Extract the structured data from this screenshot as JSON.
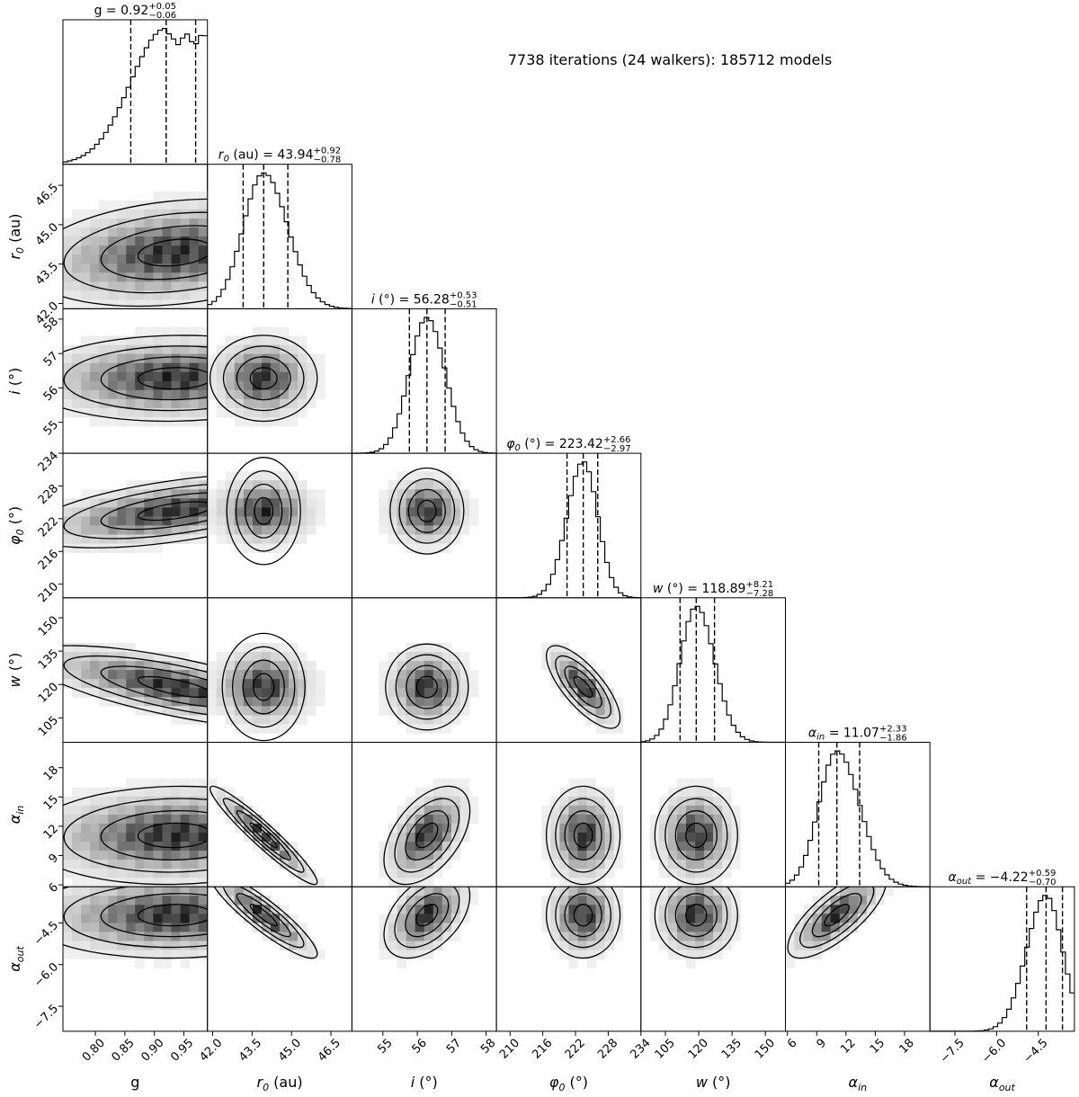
{
  "header": {
    "note": "7738 iterations (24 walkers): 185712 models"
  },
  "chart_data": {
    "type": "corner",
    "parameters": [
      {
        "key": "g",
        "label_main": "g",
        "label_sub": "",
        "label_suffix": "",
        "range": [
          0.745,
          0.99
        ],
        "ticks": [
          0.8,
          0.85,
          0.9,
          0.95
        ],
        "tick_labels": [
          "0.80",
          "0.85",
          "0.90",
          "0.95"
        ],
        "value": 0.92,
        "err_plus": 0.05,
        "err_minus": 0.06,
        "title_main": "g",
        "title_sub": "",
        "title_suffix": "",
        "title_value": "= 0.92",
        "title_plus": "+0.05",
        "title_minus": "−0.06"
      },
      {
        "key": "r0",
        "label_main": "r",
        "label_sub": "0",
        "label_suffix": " (au)",
        "range": [
          41.8,
          47.3
        ],
        "ticks": [
          42.0,
          43.5,
          45.0,
          46.5
        ],
        "tick_labels": [
          "42.0",
          "43.5",
          "45.0",
          "46.5"
        ],
        "value": 43.94,
        "err_plus": 0.92,
        "err_minus": 0.78,
        "title_main": "r",
        "title_sub": "0",
        "title_suffix": " (au)",
        "title_value": "= 43.94",
        "title_plus": "+0.92",
        "title_minus": "−0.78"
      },
      {
        "key": "i",
        "label_main": "i",
        "label_sub": "",
        "label_suffix": " (°)",
        "range": [
          54.1,
          58.3
        ],
        "ticks": [
          55,
          56,
          57,
          58
        ],
        "tick_labels": [
          "55",
          "56",
          "57",
          "58"
        ],
        "value": 56.28,
        "err_plus": 0.53,
        "err_minus": 0.51,
        "title_main": "i",
        "title_sub": "",
        "title_suffix": " (°)",
        "title_value": "= 56.28",
        "title_plus": "+0.53",
        "title_minus": "−0.51"
      },
      {
        "key": "phi0",
        "label_main": "φ",
        "label_sub": "0",
        "label_suffix": " (°)",
        "range": [
          207.5,
          234.0
        ],
        "ticks": [
          210,
          216,
          222,
          228,
          234
        ],
        "tick_labels": [
          "210",
          "216",
          "222",
          "228",
          "234"
        ],
        "value": 223.42,
        "err_plus": 2.66,
        "err_minus": 2.97,
        "title_main": "φ",
        "title_sub": "0",
        "title_suffix": " (°)",
        "title_value": "= 223.42",
        "title_plus": "+2.66",
        "title_minus": "−2.97"
      },
      {
        "key": "w",
        "label_main": "w",
        "label_sub": "",
        "label_suffix": " (°)",
        "range": [
          94.0,
          159.0
        ],
        "ticks": [
          105,
          120,
          135,
          150
        ],
        "tick_labels": [
          "105",
          "120",
          "135",
          "150"
        ],
        "value": 118.89,
        "err_plus": 8.21,
        "err_minus": 7.28,
        "title_main": "w",
        "title_sub": "",
        "title_suffix": " (°)",
        "title_value": "= 118.89",
        "title_plus": "+8.21",
        "title_minus": "−7.28"
      },
      {
        "key": "alpha_in",
        "label_main": "α",
        "label_sub": "in",
        "label_suffix": "",
        "range": [
          5.8,
          20.6
        ],
        "ticks": [
          6,
          9,
          12,
          15,
          18
        ],
        "tick_labels": [
          "6",
          "9",
          "12",
          "15",
          "18"
        ],
        "value": 11.07,
        "err_plus": 2.33,
        "err_minus": 1.86,
        "title_main": "α",
        "title_sub": "in",
        "title_suffix": "",
        "title_value": "= 11.07",
        "title_plus": "+2.33",
        "title_minus": "−1.86"
      },
      {
        "key": "alpha_out",
        "label_main": "α",
        "label_sub": "out",
        "label_suffix": "",
        "range": [
          -8.4,
          -3.2
        ],
        "ticks": [
          -7.5,
          -6.0,
          -4.5
        ],
        "tick_labels": [
          "−7.5",
          "−6.0",
          "−4.5"
        ],
        "value": -4.22,
        "err_plus": 0.59,
        "err_minus": 0.7,
        "title_main": "α",
        "title_sub": "out",
        "title_suffix": "",
        "title_value": "= −4.22",
        "title_plus": "+0.59",
        "title_minus": "−0.70"
      }
    ],
    "pair_correlations": [
      [
        1,
        0.25,
        0.05,
        0.55,
        -0.7,
        0.05,
        0.05
      ],
      [
        0.25,
        1,
        0.0,
        0.0,
        0.0,
        -0.95,
        -0.9
      ],
      [
        0.05,
        0.0,
        1,
        0.0,
        0.0,
        0.5,
        0.45
      ],
      [
        0.55,
        0.0,
        0.0,
        1,
        -0.75,
        0.0,
        0.0
      ],
      [
        -0.7,
        0.0,
        0.0,
        -0.75,
        1,
        0.0,
        0.0
      ],
      [
        0.05,
        -0.95,
        0.5,
        0.0,
        0.0,
        1,
        0.75
      ],
      [
        0.05,
        -0.9,
        0.45,
        0.0,
        0.0,
        0.75,
        1
      ]
    ],
    "contour_levels_sigma": [
      0.5,
      1.0,
      1.5,
      2.0
    ],
    "quantile_lines": "16%, 50%, 84% dashed",
    "grid": false,
    "colors": {
      "ink": "#000000",
      "density_dark": "#1a1a1a",
      "density_light": "#f2f2f2",
      "background": "#ffffff"
    }
  }
}
